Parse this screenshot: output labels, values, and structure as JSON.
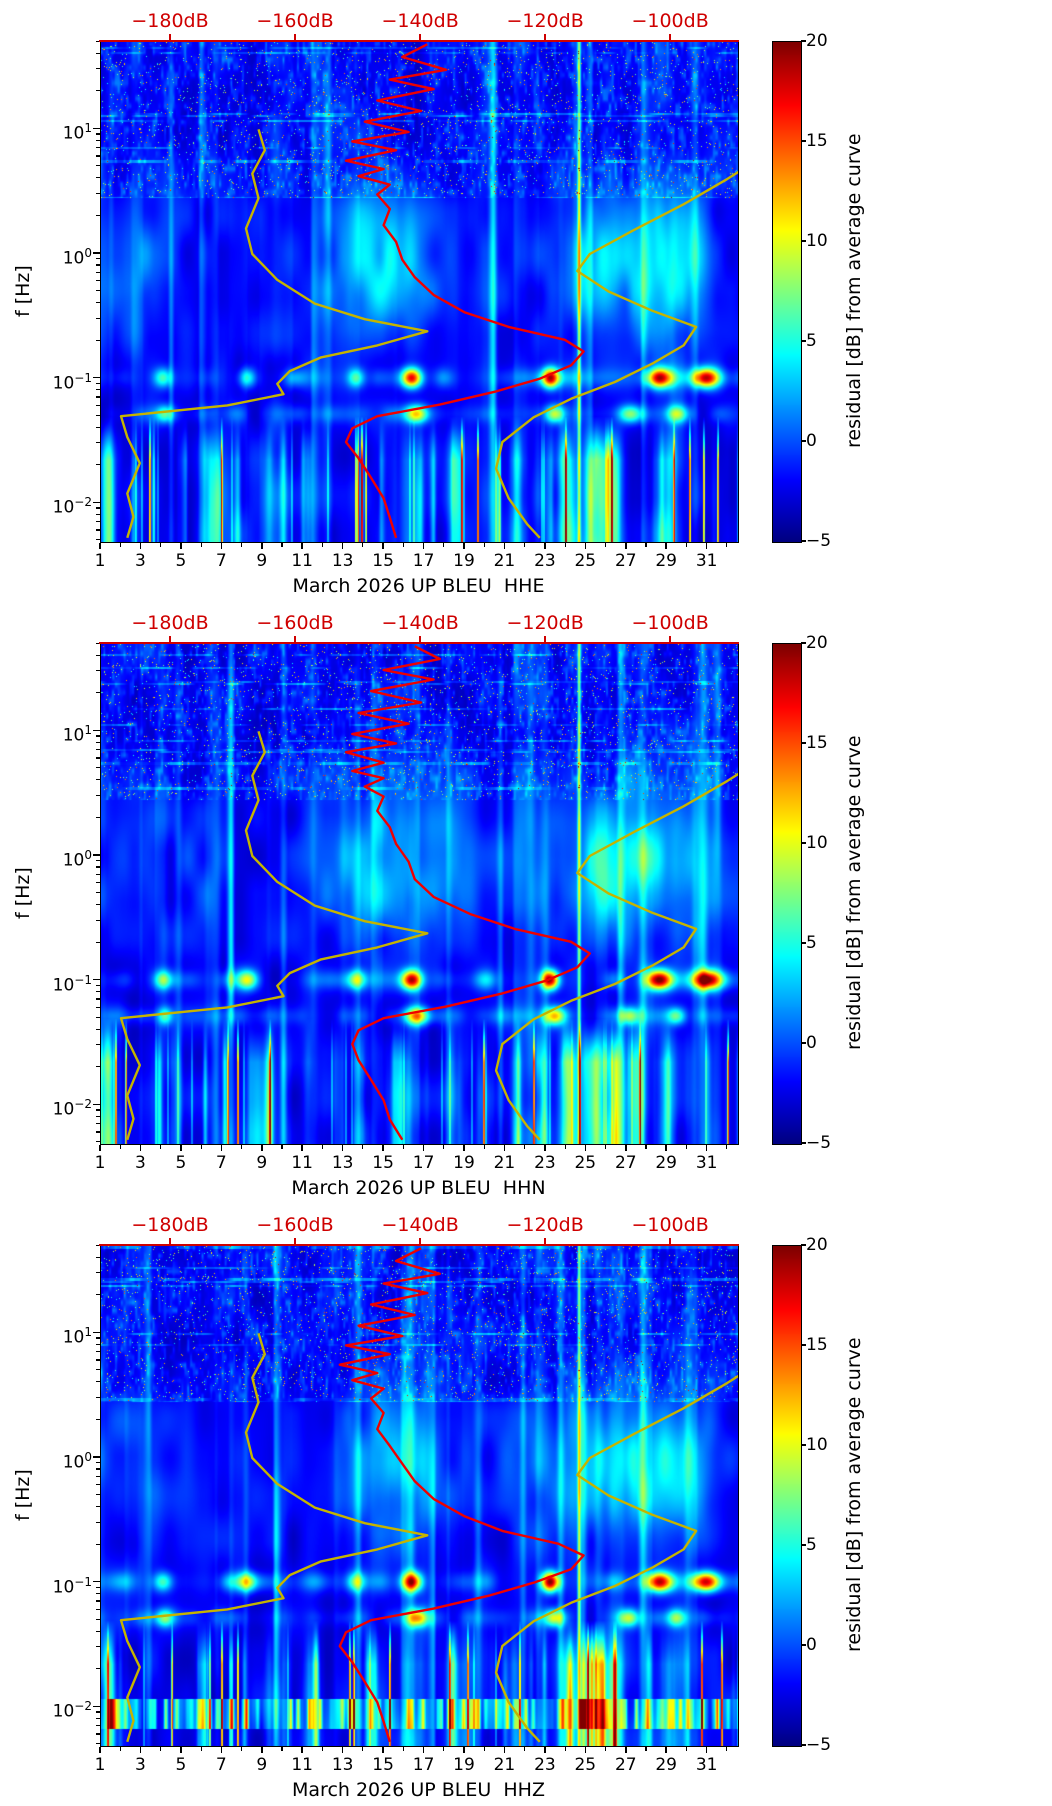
{
  "colors": {
    "curve_red": "#ee0000",
    "curve_yellow": "#c5b400",
    "axis_red": "#cf0000",
    "spine": "#000000",
    "background": "#ffffff"
  },
  "chart_data": [
    {
      "type": "heatmap",
      "channel": "HHE",
      "xlabel": "March 2026 UP BLEU  HHE",
      "ylabel": "f [Hz]",
      "x_axis": {
        "tick_days": [
          1,
          3,
          5,
          7,
          9,
          11,
          13,
          15,
          17,
          19,
          21,
          23,
          25,
          27,
          29,
          31
        ],
        "range_days": [
          1,
          32.5
        ]
      },
      "y_axis": {
        "scale": "log",
        "range_hz": [
          0.0049,
          50.1
        ],
        "ticks_hz": [
          10,
          1,
          0.1,
          0.01
        ]
      },
      "top_axis": {
        "ticks_db": [
          -180,
          -160,
          -140,
          -120,
          -100
        ],
        "range_db": [
          -191.2,
          -89.3
        ],
        "unit": "dB"
      },
      "colorbar": {
        "label": "residual [dB] from average curve",
        "ticks": [
          20,
          15,
          10,
          5,
          0,
          -5
        ],
        "range": [
          -5,
          20
        ],
        "colormap": "jet"
      },
      "curves": {
        "station_average": [
          [
            -139,
            48
          ],
          [
            -143,
            38
          ],
          [
            -136,
            30
          ],
          [
            -145,
            25
          ],
          [
            -138,
            21
          ],
          [
            -147,
            17
          ],
          [
            -140,
            14
          ],
          [
            -149,
            11.5
          ],
          [
            -142,
            9.5
          ],
          [
            -151,
            8
          ],
          [
            -144,
            6.8
          ],
          [
            -152,
            5.6
          ],
          [
            -146,
            4.8
          ],
          [
            -150,
            4.2
          ],
          [
            -145,
            3.6
          ],
          [
            -147,
            3.0
          ],
          [
            -145,
            2.3
          ],
          [
            -146,
            1.7
          ],
          [
            -144,
            1.25
          ],
          [
            -143,
            0.9
          ],
          [
            -141,
            0.65
          ],
          [
            -138,
            0.47
          ],
          [
            -133,
            0.34
          ],
          [
            -126,
            0.26
          ],
          [
            -117,
            0.205
          ],
          [
            -114,
            0.165
          ],
          [
            -116,
            0.128
          ],
          [
            -121,
            0.1
          ],
          [
            -128,
            0.079
          ],
          [
            -137,
            0.062
          ],
          [
            -147,
            0.05
          ],
          [
            -151,
            0.04
          ],
          [
            -152,
            0.031
          ],
          [
            -150,
            0.023
          ],
          [
            -148,
            0.016
          ],
          [
            -146,
            0.011
          ],
          [
            -145,
            0.0077
          ],
          [
            -144,
            0.0053
          ]
        ],
        "noise_model_low": [
          [
            -166,
            10
          ],
          [
            -165,
            6.8
          ],
          [
            -167,
            4.4
          ],
          [
            -166,
            2.8
          ],
          [
            -168,
            1.6
          ],
          [
            -167,
            1.0
          ],
          [
            -163,
            0.62
          ],
          [
            -157,
            0.4
          ],
          [
            -149,
            0.3
          ],
          [
            -139,
            0.24
          ],
          [
            -147,
            0.185
          ],
          [
            -156,
            0.148
          ],
          [
            -161,
            0.115
          ],
          [
            -163,
            0.091
          ],
          [
            -162,
            0.075
          ],
          [
            -171,
            0.061
          ],
          [
            -188,
            0.05
          ],
          [
            -187,
            0.034
          ],
          [
            -185,
            0.021
          ],
          [
            -187,
            0.012
          ],
          [
            -186,
            0.0078
          ],
          [
            -187,
            0.0053
          ]
        ],
        "noise_model_high": [
          [
            -80,
            9
          ],
          [
            -85,
            6.2
          ],
          [
            -91,
            4.0
          ],
          [
            -98,
            2.5
          ],
          [
            -106,
            1.55
          ],
          [
            -113,
            1.0
          ],
          [
            -115,
            0.73
          ],
          [
            -110,
            0.5
          ],
          [
            -103,
            0.35
          ],
          [
            -96,
            0.26
          ],
          [
            -98,
            0.185
          ],
          [
            -103,
            0.132
          ],
          [
            -109,
            0.094
          ],
          [
            -116,
            0.069
          ],
          [
            -122,
            0.049
          ],
          [
            -127,
            0.031
          ],
          [
            -128,
            0.019
          ],
          [
            -126,
            0.011
          ],
          [
            -123,
            0.0068
          ],
          [
            -121,
            0.0053
          ]
        ]
      },
      "texture_seed": 1
    },
    {
      "type": "heatmap",
      "channel": "HHN",
      "xlabel": "March 2026 UP BLEU  HHN",
      "ylabel": "f [Hz]",
      "x_axis": {
        "tick_days": [
          1,
          3,
          5,
          7,
          9,
          11,
          13,
          15,
          17,
          19,
          21,
          23,
          25,
          27,
          29,
          31
        ],
        "range_days": [
          1,
          32.5
        ]
      },
      "y_axis": {
        "scale": "log",
        "range_hz": [
          0.0049,
          50.1
        ],
        "ticks_hz": [
          10,
          1,
          0.1,
          0.01
        ]
      },
      "top_axis": {
        "ticks_db": [
          -180,
          -160,
          -140,
          -120,
          -100
        ],
        "range_db": [
          -191.2,
          -89.3
        ],
        "unit": "dB"
      },
      "colorbar": {
        "label": "residual [dB] from average curve",
        "ticks": [
          20,
          15,
          10,
          5,
          0,
          -5
        ],
        "range": [
          -5,
          20
        ],
        "colormap": "jet"
      },
      "curves": {
        "station_average": [
          [
            -141,
            48
          ],
          [
            -137,
            38
          ],
          [
            -146,
            31
          ],
          [
            -138,
            26
          ],
          [
            -148,
            21
          ],
          [
            -140,
            17
          ],
          [
            -150,
            14
          ],
          [
            -142,
            11.5
          ],
          [
            -151,
            9.5
          ],
          [
            -144,
            8
          ],
          [
            -152,
            6.8
          ],
          [
            -146,
            5.6
          ],
          [
            -151,
            4.8
          ],
          [
            -146,
            4.2
          ],
          [
            -149,
            3.6
          ],
          [
            -146,
            3.0
          ],
          [
            -147,
            2.3
          ],
          [
            -145,
            1.7
          ],
          [
            -144,
            1.25
          ],
          [
            -142,
            0.9
          ],
          [
            -141,
            0.65
          ],
          [
            -138,
            0.47
          ],
          [
            -132,
            0.34
          ],
          [
            -125,
            0.26
          ],
          [
            -116,
            0.205
          ],
          [
            -113,
            0.165
          ],
          [
            -115,
            0.128
          ],
          [
            -120,
            0.1
          ],
          [
            -127,
            0.079
          ],
          [
            -136,
            0.062
          ],
          [
            -146,
            0.05
          ],
          [
            -150,
            0.04
          ],
          [
            -151,
            0.031
          ],
          [
            -150,
            0.023
          ],
          [
            -148,
            0.016
          ],
          [
            -146,
            0.011
          ],
          [
            -145,
            0.0077
          ],
          [
            -143,
            0.0053
          ]
        ],
        "noise_model_low": [
          [
            -166,
            10
          ],
          [
            -165,
            6.8
          ],
          [
            -167,
            4.4
          ],
          [
            -166,
            2.8
          ],
          [
            -168,
            1.6
          ],
          [
            -167,
            1.0
          ],
          [
            -163,
            0.62
          ],
          [
            -157,
            0.4
          ],
          [
            -149,
            0.3
          ],
          [
            -139,
            0.24
          ],
          [
            -147,
            0.185
          ],
          [
            -156,
            0.148
          ],
          [
            -161,
            0.115
          ],
          [
            -163,
            0.091
          ],
          [
            -162,
            0.075
          ],
          [
            -171,
            0.061
          ],
          [
            -188,
            0.05
          ],
          [
            -187,
            0.034
          ],
          [
            -185,
            0.021
          ],
          [
            -187,
            0.012
          ],
          [
            -186,
            0.0078
          ],
          [
            -187,
            0.0053
          ]
        ],
        "noise_model_high": [
          [
            -80,
            9
          ],
          [
            -85,
            6.2
          ],
          [
            -91,
            4.0
          ],
          [
            -98,
            2.5
          ],
          [
            -106,
            1.55
          ],
          [
            -113,
            1.0
          ],
          [
            -115,
            0.73
          ],
          [
            -110,
            0.5
          ],
          [
            -103,
            0.35
          ],
          [
            -96,
            0.26
          ],
          [
            -98,
            0.185
          ],
          [
            -103,
            0.132
          ],
          [
            -109,
            0.094
          ],
          [
            -116,
            0.069
          ],
          [
            -122,
            0.049
          ],
          [
            -127,
            0.031
          ],
          [
            -128,
            0.019
          ],
          [
            -126,
            0.011
          ],
          [
            -123,
            0.0068
          ],
          [
            -121,
            0.0053
          ]
        ]
      },
      "texture_seed": 2
    },
    {
      "type": "heatmap",
      "channel": "HHZ",
      "xlabel": "March 2026 UP BLEU  HHZ",
      "ylabel": "f [Hz]",
      "x_axis": {
        "tick_days": [
          1,
          3,
          5,
          7,
          9,
          11,
          13,
          15,
          17,
          19,
          21,
          23,
          25,
          27,
          29,
          31
        ],
        "range_days": [
          1,
          32.5
        ]
      },
      "y_axis": {
        "scale": "log",
        "range_hz": [
          0.0049,
          50.1
        ],
        "ticks_hz": [
          10,
          1,
          0.1,
          0.01
        ]
      },
      "top_axis": {
        "ticks_db": [
          -180,
          -160,
          -140,
          -120,
          -100
        ],
        "range_db": [
          -191.2,
          -89.3
        ],
        "unit": "dB"
      },
      "colorbar": {
        "label": "residual [dB] from average curve",
        "ticks": [
          20,
          15,
          10,
          5,
          0,
          -5
        ],
        "range": [
          -5,
          20
        ],
        "colormap": "jet"
      },
      "curves": {
        "station_average": [
          [
            -140,
            48
          ],
          [
            -144,
            38
          ],
          [
            -137,
            30
          ],
          [
            -146,
            25
          ],
          [
            -139,
            21
          ],
          [
            -148,
            17
          ],
          [
            -141,
            14
          ],
          [
            -150,
            11.5
          ],
          [
            -143,
            9.5
          ],
          [
            -152,
            8
          ],
          [
            -145,
            6.8
          ],
          [
            -153,
            5.6
          ],
          [
            -147,
            4.8
          ],
          [
            -151,
            4.2
          ],
          [
            -146,
            3.6
          ],
          [
            -148,
            3.0
          ],
          [
            -146,
            2.3
          ],
          [
            -147,
            1.7
          ],
          [
            -145,
            1.25
          ],
          [
            -143,
            0.9
          ],
          [
            -141,
            0.65
          ],
          [
            -138,
            0.47
          ],
          [
            -133,
            0.34
          ],
          [
            -127,
            0.26
          ],
          [
            -118,
            0.205
          ],
          [
            -114,
            0.165
          ],
          [
            -116,
            0.128
          ],
          [
            -122,
            0.1
          ],
          [
            -129,
            0.079
          ],
          [
            -138,
            0.062
          ],
          [
            -148,
            0.05
          ],
          [
            -152,
            0.04
          ],
          [
            -153,
            0.031
          ],
          [
            -151,
            0.023
          ],
          [
            -149,
            0.016
          ],
          [
            -147,
            0.011
          ],
          [
            -146,
            0.0077
          ],
          [
            -145,
            0.0053
          ]
        ],
        "noise_model_low": [
          [
            -166,
            10
          ],
          [
            -165,
            6.8
          ],
          [
            -167,
            4.4
          ],
          [
            -166,
            2.8
          ],
          [
            -168,
            1.6
          ],
          [
            -167,
            1.0
          ],
          [
            -163,
            0.62
          ],
          [
            -157,
            0.4
          ],
          [
            -149,
            0.3
          ],
          [
            -139,
            0.24
          ],
          [
            -147,
            0.185
          ],
          [
            -156,
            0.148
          ],
          [
            -161,
            0.115
          ],
          [
            -163,
            0.091
          ],
          [
            -162,
            0.075
          ],
          [
            -171,
            0.061
          ],
          [
            -188,
            0.05
          ],
          [
            -187,
            0.034
          ],
          [
            -185,
            0.021
          ],
          [
            -187,
            0.012
          ],
          [
            -186,
            0.0078
          ],
          [
            -187,
            0.0053
          ]
        ],
        "noise_model_high": [
          [
            -80,
            9
          ],
          [
            -85,
            6.2
          ],
          [
            -91,
            4.0
          ],
          [
            -98,
            2.5
          ],
          [
            -106,
            1.55
          ],
          [
            -113,
            1.0
          ],
          [
            -115,
            0.73
          ],
          [
            -110,
            0.5
          ],
          [
            -103,
            0.35
          ],
          [
            -96,
            0.26
          ],
          [
            -98,
            0.185
          ],
          [
            -103,
            0.132
          ],
          [
            -109,
            0.094
          ],
          [
            -116,
            0.069
          ],
          [
            -122,
            0.049
          ],
          [
            -127,
            0.031
          ],
          [
            -128,
            0.019
          ],
          [
            -126,
            0.011
          ],
          [
            -123,
            0.0068
          ],
          [
            -121,
            0.0053
          ]
        ]
      },
      "texture_seed": 3
    }
  ]
}
